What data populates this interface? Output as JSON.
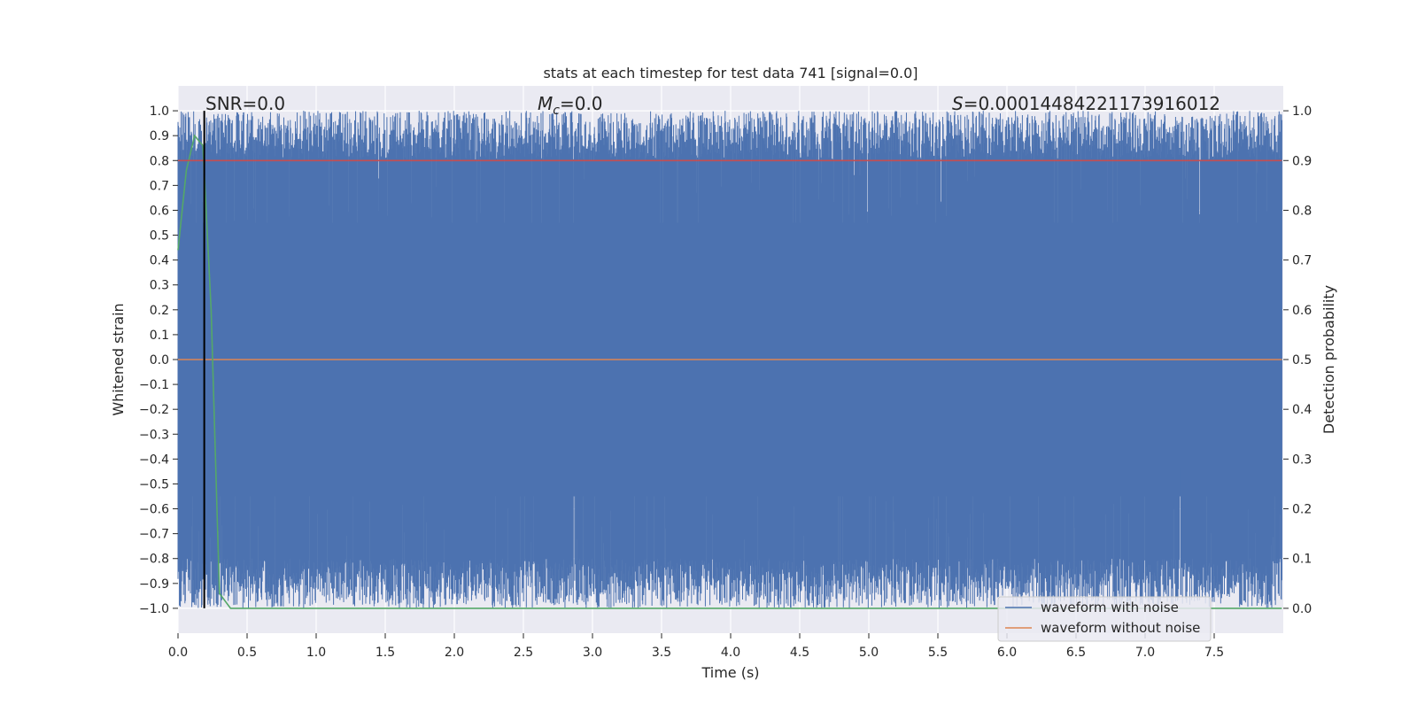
{
  "chart_data": {
    "type": "line",
    "title": "stats at each timestep for test data 741 [signal=0.0]",
    "xlabel": "Time (s)",
    "ylabel": "Whitened strain",
    "ylabel_right": "Detection probability",
    "xlim": [
      0.0,
      8.0
    ],
    "ylim": [
      -1.1,
      1.1
    ],
    "ylim_right": [
      -0.05,
      1.05
    ],
    "x_ticks": [
      "0.0",
      "0.5",
      "1.0",
      "1.5",
      "2.0",
      "2.5",
      "3.0",
      "3.5",
      "4.0",
      "4.5",
      "5.0",
      "5.5",
      "6.0",
      "6.5",
      "7.0",
      "7.5"
    ],
    "y_ticks": [
      "1.0",
      "0.9",
      "0.8",
      "0.7",
      "0.6",
      "0.5",
      "0.4",
      "0.3",
      "0.2",
      "0.1",
      "0.0",
      "−0.1",
      "−0.2",
      "−0.3",
      "−0.4",
      "−0.5",
      "−0.6",
      "−0.7",
      "−0.8",
      "−0.9",
      "−1.0"
    ],
    "y_ticks_right": [
      "1.0",
      "0.9",
      "0.8",
      "0.7",
      "0.6",
      "0.5",
      "0.4",
      "0.3",
      "0.2",
      "0.1",
      "0.0"
    ],
    "grid": true,
    "legend_position": "bottom-right",
    "annotations": {
      "snr": "SNR=0.0",
      "mc_symbol": "M",
      "mc_subscript": "c",
      "mc_value": "=0.0",
      "s_symbol": "S",
      "s_value": "=0.00014484221173916012"
    },
    "vertical_marker_x": 0.19,
    "series": [
      {
        "name": "waveform with noise",
        "color": "#4c72b0",
        "axis": "left",
        "description_values": "noise band between approx -1.0 and 1.0"
      },
      {
        "name": "waveform without noise",
        "color": "#dd8452",
        "axis": "left",
        "x": [
          0.0,
          7.99
        ],
        "y": [
          0.0,
          0.0
        ]
      },
      {
        "color": "#55a868",
        "axis": "right",
        "x": [
          0.0,
          0.06,
          0.12,
          0.18,
          0.24,
          0.3,
          0.38,
          0.5,
          1.0,
          2.0,
          3.0,
          4.0,
          5.0,
          6.0,
          7.0,
          7.99
        ],
        "y": [
          0.72,
          0.88,
          0.95,
          0.93,
          0.6,
          0.03,
          0.0,
          0.0,
          0.0,
          0.0,
          0.0,
          0.0,
          0.0,
          0.0,
          0.0,
          0.0
        ]
      },
      {
        "color": "#c44e52",
        "axis": "right",
        "x": [
          0.0,
          7.99
        ],
        "y": [
          0.9,
          0.9
        ]
      }
    ]
  }
}
